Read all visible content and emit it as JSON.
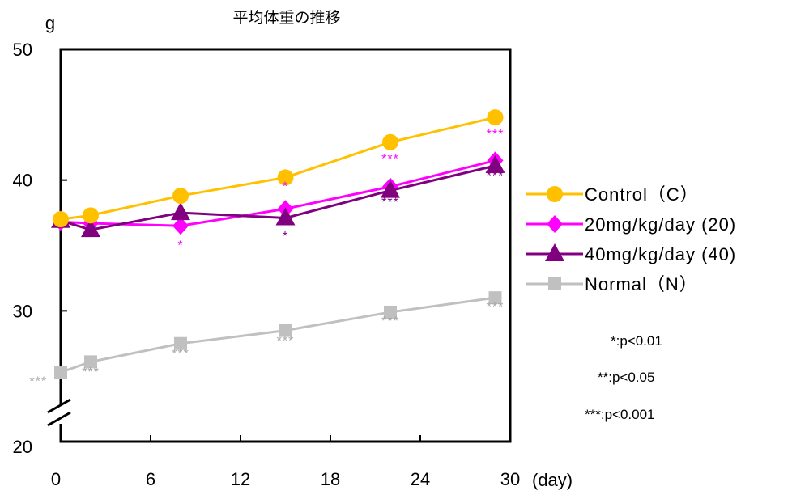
{
  "chart_data": {
    "type": "line",
    "title": "平均体重の推移",
    "ylabel": "g",
    "xlabel": "(day)",
    "xlim": [
      0,
      30
    ],
    "ylim": [
      20,
      50
    ],
    "x_ticks": [
      "0",
      "6",
      "12",
      "18",
      "24",
      "30"
    ],
    "y_ticks": [
      "20",
      "30",
      "40",
      "50"
    ],
    "axis_break": true,
    "grid": false,
    "legend_position": "right",
    "x": [
      0,
      2,
      8,
      15,
      22,
      29
    ],
    "series": [
      {
        "name": "Control（C）",
        "color": "#FFC000",
        "marker": "circle",
        "values": [
          37.0,
          37.3,
          38.8,
          40.2,
          42.9,
          44.8
        ]
      },
      {
        "name": "20mg/kg/day (20)",
        "color": "#FF00FF",
        "marker": "diamond",
        "values": [
          36.8,
          36.7,
          36.5,
          37.8,
          39.5,
          41.5
        ]
      },
      {
        "name": "40mg/kg/day (40)",
        "color": "#800080",
        "marker": "triangle",
        "values": [
          36.9,
          36.2,
          37.5,
          37.1,
          39.2,
          41.1
        ]
      },
      {
        "name": "Normal（N）",
        "color": "#C0C0C0",
        "marker": "square",
        "values": [
          25.3,
          26.1,
          27.5,
          28.5,
          29.9,
          31.0
        ]
      }
    ],
    "annotations": [
      {
        "text": "***",
        "x": 29,
        "y": 43.2,
        "color": "#FF00FF"
      },
      {
        "text": "***",
        "x": 22,
        "y": 41.3,
        "color": "#FF00FF"
      },
      {
        "text": "*",
        "x": 15,
        "y": 39.2,
        "color": "#FF00FF"
      },
      {
        "text": "*",
        "x": 8,
        "y": 34.7,
        "color": "#FF00FF"
      },
      {
        "text": "***",
        "x": 29,
        "y": 40.0,
        "color": "#800080"
      },
      {
        "text": "***",
        "x": 22,
        "y": 38.0,
        "color": "#800080"
      },
      {
        "text": "*",
        "x": 15,
        "y": 35.4,
        "color": "#800080"
      },
      {
        "text": "***",
        "x": 29,
        "y": 30.0,
        "color": "#A6A6A6"
      },
      {
        "text": "***",
        "x": 22,
        "y": 28.9,
        "color": "#A6A6A6"
      },
      {
        "text": "***",
        "x": 15,
        "y": 27.4,
        "color": "#A6A6A6"
      },
      {
        "text": "***",
        "x": 8,
        "y": 26.4,
        "color": "#A6A6A6"
      },
      {
        "text": "***",
        "x": 2,
        "y": 25.0,
        "color": "#A6A6A6"
      },
      {
        "text": "***",
        "x": -1.5,
        "y": 24.3,
        "color": "#A6A6A6"
      }
    ],
    "notes": [
      "*:p<0.01",
      "**:p<0.05",
      "***:p<0.001"
    ]
  }
}
